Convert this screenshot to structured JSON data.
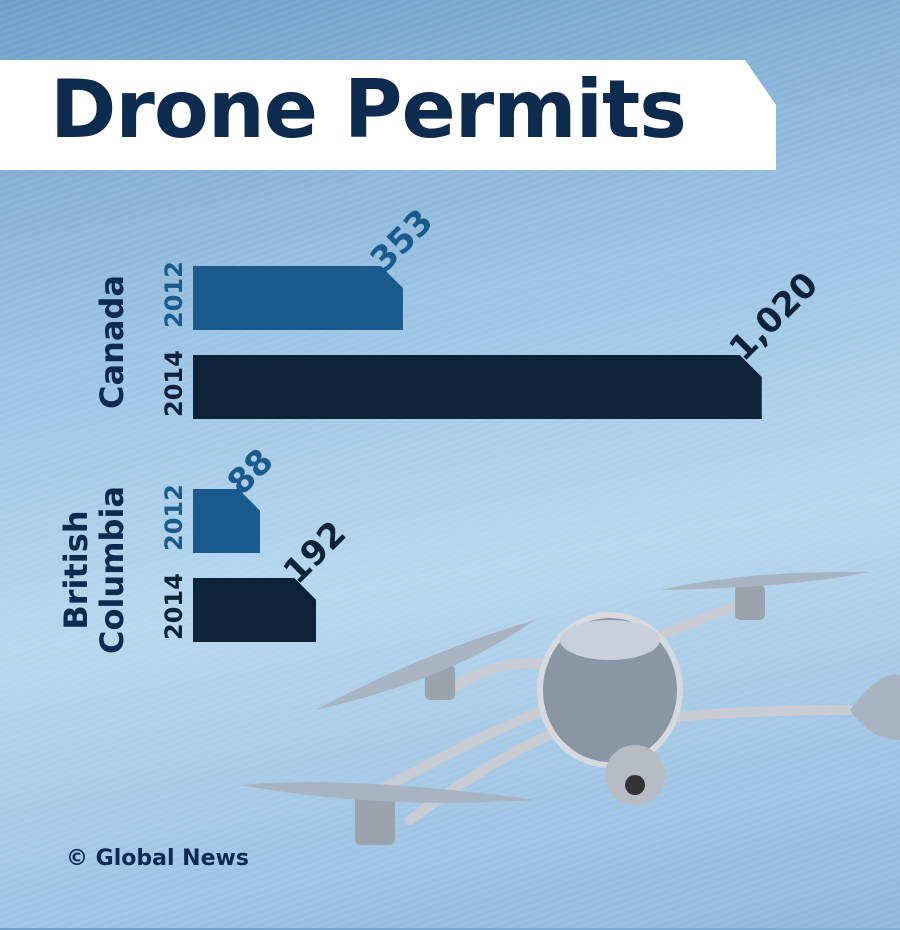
{
  "chart_data": {
    "type": "bar",
    "orientation": "horizontal",
    "title": "Drone Permits",
    "groups": [
      {
        "name": "Canada",
        "bars": [
          {
            "year": "2012",
            "value": 353,
            "label": "353"
          },
          {
            "year": "2014",
            "value": 1020,
            "label": "1,020"
          }
        ]
      },
      {
        "name": "British Columbia",
        "bars": [
          {
            "year": "2012",
            "value": 88,
            "label": "88"
          },
          {
            "year": "2014",
            "value": 192,
            "label": "192"
          }
        ]
      }
    ],
    "colors": {
      "2012": "#1b5a8c",
      "2014": "#0c2339"
    }
  },
  "credit": "© Global News"
}
